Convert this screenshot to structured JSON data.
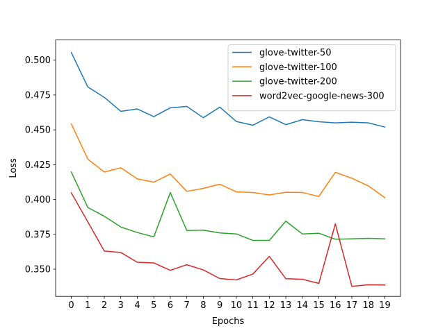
{
  "chart_data": {
    "type": "line",
    "title": "",
    "xlabel": "Epochs",
    "ylabel": "Loss",
    "x": [
      0,
      1,
      2,
      3,
      4,
      5,
      6,
      7,
      8,
      9,
      10,
      11,
      12,
      13,
      14,
      15,
      16,
      17,
      18,
      19
    ],
    "xlim": [
      -0.95,
      19.95
    ],
    "ylim": [
      0.3305,
      0.5145
    ],
    "yticks": [
      0.35,
      0.375,
      0.4,
      0.425,
      0.45,
      0.475,
      0.5
    ],
    "ytick_labels": [
      "0.350",
      "0.375",
      "0.400",
      "0.425",
      "0.450",
      "0.475",
      "0.500"
    ],
    "grid": false,
    "legend_position": "top-right",
    "series": [
      {
        "name": "glove-twitter-50",
        "color": "#1f77b4",
        "values": [
          0.5055,
          0.4808,
          0.4733,
          0.4633,
          0.465,
          0.4595,
          0.4658,
          0.4668,
          0.4587,
          0.4663,
          0.456,
          0.4533,
          0.4593,
          0.4537,
          0.4573,
          0.4558,
          0.455,
          0.4555,
          0.455,
          0.452
        ]
      },
      {
        "name": "glove-twitter-100",
        "color": "#ff7f0e",
        "values": [
          0.4543,
          0.429,
          0.4197,
          0.4228,
          0.4148,
          0.4125,
          0.4183,
          0.4058,
          0.408,
          0.411,
          0.4055,
          0.405,
          0.4033,
          0.4052,
          0.405,
          0.4022,
          0.4195,
          0.4153,
          0.4098,
          0.4013
        ]
      },
      {
        "name": "glove-twitter-200",
        "color": "#2ca02c",
        "values": [
          0.4198,
          0.3943,
          0.388,
          0.3803,
          0.3763,
          0.3732,
          0.405,
          0.3778,
          0.378,
          0.376,
          0.3753,
          0.3707,
          0.3707,
          0.3845,
          0.3753,
          0.3758,
          0.3715,
          0.3718,
          0.3722,
          0.3718
        ]
      },
      {
        "name": "word2vec-google-news-300",
        "color": "#d62728",
        "values": [
          0.4048,
          0.384,
          0.363,
          0.362,
          0.355,
          0.3545,
          0.3492,
          0.3532,
          0.3495,
          0.3433,
          0.3423,
          0.3465,
          0.3592,
          0.3432,
          0.3428,
          0.3398,
          0.3825,
          0.3377,
          0.3388,
          0.3387
        ]
      }
    ]
  }
}
